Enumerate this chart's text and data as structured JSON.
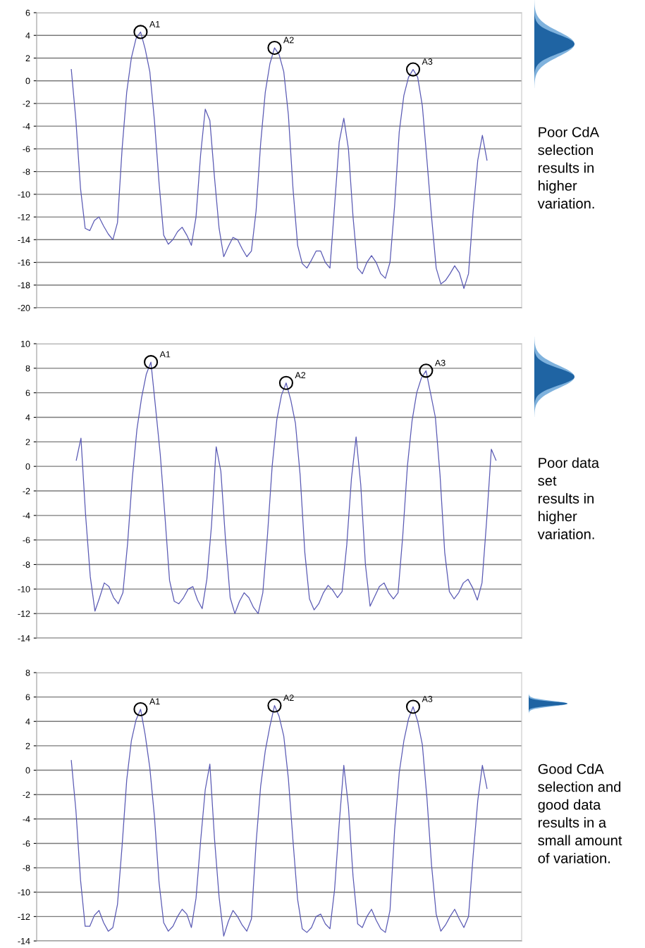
{
  "chart_data": [
    {
      "type": "line",
      "categories": [
        null,
        null,
        null,
        null,
        null,
        null,
        null,
        null,
        null,
        null,
        null,
        null,
        null,
        null,
        null,
        null,
        null,
        null,
        null,
        null,
        null,
        null,
        null,
        null,
        null,
        null,
        null,
        null,
        null,
        null,
        null,
        null,
        null,
        null,
        null,
        null,
        null,
        null,
        null,
        null,
        null,
        null,
        null,
        null,
        null,
        null,
        null,
        null,
        null,
        null,
        null,
        null,
        null,
        null,
        null,
        null,
        null,
        null,
        null,
        null,
        null,
        null,
        null,
        null,
        null,
        null,
        null,
        null,
        null,
        null,
        null,
        null,
        null,
        null,
        null,
        null,
        null,
        null,
        null,
        null,
        null,
        null,
        null,
        null,
        null,
        null,
        null,
        null,
        null,
        null,
        null,
        null,
        null,
        null,
        null,
        null,
        null,
        null,
        null,
        null,
        null,
        null,
        null,
        null,
        null
      ],
      "series": [
        {
          "color": "#5a5ab4",
          "values": [
            null,
            null,
            null,
            null,
            null,
            null,
            null,
            1,
            -3.5,
            -9.5,
            -13,
            -13.2,
            -12.3,
            -12,
            -12.8,
            -13.5,
            -14,
            -12.5,
            -6,
            -1,
            2,
            3.7,
            4.3,
            2.8,
            0.8,
            -3.5,
            -9,
            -13.6,
            -14.4,
            -14,
            -13.3,
            -12.9,
            -13.6,
            -14.5,
            -12,
            -6.5,
            -2.5,
            -3.5,
            -8.5,
            -13,
            -15.5,
            -14.6,
            -13.8,
            -14,
            -14.8,
            -15.5,
            -15,
            -11.5,
            -5.5,
            -1,
            1.5,
            2.9,
            2.3,
            0.8,
            -3,
            -9.5,
            -14.5,
            -16.1,
            -16.5,
            -15.8,
            -15,
            -15,
            -16,
            -16.5,
            -11,
            -5.4,
            -3.3,
            -6,
            -12,
            -16.5,
            -17,
            -16,
            -15.4,
            -16,
            -17,
            -17.4,
            -16,
            -11,
            -4.5,
            -1.3,
            0.3,
            1,
            0.3,
            -2.2,
            -7,
            -12,
            -16.5,
            -17.9,
            -17.6,
            -17,
            -16.3,
            -16.9,
            -18.3,
            -17,
            -11.5,
            -7,
            -4.8,
            -7,
            null,
            null,
            null,
            null,
            null,
            null,
            null
          ]
        },
        {
          "type": "scatter",
          "marker": "circle",
          "color": "#000000",
          "values": [
            null,
            null,
            null,
            null,
            null,
            null,
            null,
            null,
            null,
            null,
            null,
            null,
            null,
            null,
            null,
            null,
            null,
            null,
            null,
            null,
            null,
            null,
            4.3,
            null,
            null,
            null,
            null,
            null,
            null,
            null,
            null,
            null,
            null,
            null,
            null,
            null,
            null,
            null,
            null,
            null,
            null,
            null,
            null,
            null,
            null,
            null,
            null,
            null,
            null,
            null,
            null,
            2.9,
            null,
            null,
            null,
            null,
            null,
            null,
            null,
            null,
            null,
            null,
            null,
            null,
            null,
            null,
            null,
            null,
            null,
            null,
            null,
            null,
            null,
            null,
            null,
            null,
            null,
            null,
            null,
            null,
            null,
            1,
            null,
            null,
            null,
            null,
            null,
            null,
            null,
            null,
            null,
            null,
            null,
            null,
            null,
            null,
            null,
            null,
            null,
            null,
            null,
            null,
            null,
            null,
            null
          ],
          "value_labels": [
            null,
            null,
            null,
            null,
            null,
            null,
            null,
            null,
            null,
            null,
            null,
            null,
            null,
            null,
            null,
            null,
            null,
            null,
            null,
            null,
            null,
            null,
            "A1",
            null,
            null,
            null,
            null,
            null,
            null,
            null,
            null,
            null,
            null,
            null,
            null,
            null,
            null,
            null,
            null,
            null,
            null,
            null,
            null,
            null,
            null,
            null,
            null,
            null,
            null,
            null,
            null,
            "A2",
            null,
            null,
            null,
            null,
            null,
            null,
            null,
            null,
            null,
            null,
            null,
            null,
            null,
            null,
            null,
            null,
            null,
            null,
            null,
            null,
            null,
            null,
            null,
            null,
            null,
            null,
            null,
            null,
            null,
            "A3",
            null,
            null,
            null,
            null,
            null,
            null,
            null,
            null,
            null,
            null,
            null,
            null,
            null,
            null,
            null,
            null,
            null,
            null,
            null,
            null,
            null,
            null,
            null
          ]
        }
      ],
      "ylim": [
        -20,
        6
      ],
      "yticks": [
        -20,
        -18,
        -16,
        -14,
        -12,
        -10,
        -8,
        -6,
        -4,
        -2,
        0,
        2,
        4,
        6
      ],
      "grid": "y",
      "annotations": [
        "Poor CdA\nselection\nresults in\nhigher\nvariation."
      ]
    },
    {
      "type": "line",
      "categories": [
        null,
        null,
        null,
        null,
        null,
        null,
        null,
        null,
        null,
        null,
        null,
        null,
        null,
        null,
        null,
        null,
        null,
        null,
        null,
        null,
        null,
        null,
        null,
        null,
        null,
        null,
        null,
        null,
        null,
        null,
        null,
        null,
        null,
        null,
        null,
        null,
        null,
        null,
        null,
        null,
        null,
        null,
        null,
        null,
        null,
        null,
        null,
        null,
        null,
        null,
        null,
        null,
        null,
        null,
        null,
        null,
        null,
        null,
        null,
        null,
        null,
        null,
        null,
        null,
        null,
        null,
        null,
        null,
        null,
        null,
        null,
        null,
        null,
        null,
        null,
        null,
        null,
        null,
        null,
        null,
        null,
        null,
        null,
        null,
        null,
        null,
        null,
        null,
        null,
        null,
        null,
        null,
        null,
        null,
        null,
        null,
        null,
        null,
        null,
        null,
        null,
        null,
        null,
        null
      ],
      "series": [
        {
          "color": "#5a5ab4",
          "values": [
            null,
            null,
            null,
            null,
            null,
            null,
            null,
            null,
            0.5,
            2.3,
            -4,
            -9,
            -11.8,
            -10.7,
            -9.5,
            -9.8,
            -10.7,
            -11.2,
            -10.3,
            -6.3,
            -1,
            3,
            5.6,
            7.5,
            8.5,
            4.8,
            1,
            -4,
            -9.3,
            -11,
            -11.2,
            -10.7,
            -10,
            -9.8,
            -10.9,
            -11.6,
            -9.2,
            -4.8,
            1.6,
            -0.4,
            -6,
            -10.7,
            -12,
            -11,
            -10.3,
            -10.7,
            -11.5,
            -12,
            -10.3,
            -5.6,
            0,
            3.8,
            5.8,
            6.8,
            5.4,
            3.5,
            -0.7,
            -7,
            -10.8,
            -11.7,
            -11.2,
            -10.3,
            -9.7,
            -10.1,
            -10.7,
            -10.2,
            -6.4,
            -1,
            2.4,
            -1.5,
            -8,
            -11.4,
            -10.6,
            -9.8,
            -9.5,
            -10.3,
            -10.8,
            -10.3,
            -5.7,
            0,
            3.7,
            6,
            7.2,
            7.8,
            5.9,
            4,
            -0.7,
            -7,
            -10.2,
            -10.8,
            -10.3,
            -9.5,
            -9.2,
            -9.9,
            -10.9,
            -9.5,
            -4.4,
            1.4,
            0.5,
            null,
            null,
            null,
            null,
            null
          ]
        },
        {
          "type": "scatter",
          "marker": "circle",
          "color": "#000000",
          "values": [
            null,
            null,
            null,
            null,
            null,
            null,
            null,
            null,
            null,
            null,
            null,
            null,
            null,
            null,
            null,
            null,
            null,
            null,
            null,
            null,
            null,
            null,
            null,
            null,
            8.5,
            null,
            null,
            null,
            null,
            null,
            null,
            null,
            null,
            null,
            null,
            null,
            null,
            null,
            null,
            null,
            null,
            null,
            null,
            null,
            null,
            null,
            null,
            null,
            null,
            null,
            null,
            null,
            null,
            6.8,
            null,
            null,
            null,
            null,
            null,
            null,
            null,
            null,
            null,
            null,
            null,
            null,
            null,
            null,
            null,
            null,
            null,
            null,
            null,
            null,
            null,
            null,
            null,
            null,
            null,
            null,
            null,
            null,
            null,
            7.8,
            null,
            null,
            null,
            null,
            null,
            null,
            null,
            null,
            null,
            null,
            null,
            null,
            null,
            null,
            null,
            null,
            null,
            null,
            null,
            null
          ],
          "value_labels": [
            null,
            null,
            null,
            null,
            null,
            null,
            null,
            null,
            null,
            null,
            null,
            null,
            null,
            null,
            null,
            null,
            null,
            null,
            null,
            null,
            null,
            null,
            null,
            null,
            "A1",
            null,
            null,
            null,
            null,
            null,
            null,
            null,
            null,
            null,
            null,
            null,
            null,
            null,
            null,
            null,
            null,
            null,
            null,
            null,
            null,
            null,
            null,
            null,
            null,
            null,
            null,
            null,
            null,
            "A2",
            null,
            null,
            null,
            null,
            null,
            null,
            null,
            null,
            null,
            null,
            null,
            null,
            null,
            null,
            null,
            null,
            null,
            null,
            null,
            null,
            null,
            null,
            null,
            null,
            null,
            null,
            null,
            null,
            null,
            "A3",
            null,
            null,
            null,
            null,
            null,
            null,
            null,
            null,
            null,
            null,
            null,
            null,
            null,
            null,
            null,
            null,
            null,
            null,
            null,
            null
          ]
        }
      ],
      "ylim": [
        -14,
        10
      ],
      "yticks": [
        -14,
        -12,
        -10,
        -8,
        -6,
        -4,
        -2,
        0,
        2,
        4,
        6,
        8,
        10
      ],
      "grid": "y",
      "annotations": [
        "Poor data\nset\nresults in\nhigher\nvariation."
      ]
    },
    {
      "type": "line",
      "categories": [
        null,
        null,
        null,
        null,
        null,
        null,
        null,
        null,
        null,
        null,
        null,
        null,
        null,
        null,
        null,
        null,
        null,
        null,
        null,
        null,
        null,
        null,
        null,
        null,
        null,
        null,
        null,
        null,
        null,
        null,
        null,
        null,
        null,
        null,
        null,
        null,
        null,
        null,
        null,
        null,
        null,
        null,
        null,
        null,
        null,
        null,
        null,
        null,
        null,
        null,
        null,
        null,
        null,
        null,
        null,
        null,
        null,
        null,
        null,
        null,
        null,
        null,
        null,
        null,
        null,
        null,
        null,
        null,
        null,
        null,
        null,
        null,
        null,
        null,
        null,
        null,
        null,
        null,
        null,
        null,
        null,
        null,
        null,
        null,
        null,
        null,
        null,
        null,
        null,
        null,
        null,
        null,
        null,
        null,
        null,
        null,
        null,
        null,
        null,
        null,
        null,
        null,
        null,
        null,
        null
      ],
      "series": [
        {
          "color": "#5a5ab4",
          "values": [
            null,
            null,
            null,
            null,
            null,
            null,
            null,
            0.8,
            -3.3,
            -9,
            -12.8,
            -12.8,
            -11.9,
            -11.5,
            -12.5,
            -13.2,
            -12.9,
            -11,
            -6.2,
            -0.8,
            2.4,
            4.1,
            5,
            2.9,
            0.2,
            -3.8,
            -9.2,
            -12.5,
            -13.2,
            -12.8,
            -12,
            -11.4,
            -11.8,
            -12.9,
            -10.5,
            -5.8,
            -1.6,
            0.5,
            -5.6,
            -10.4,
            -13.6,
            -12.4,
            -11.5,
            -12,
            -12.7,
            -13.2,
            -12.2,
            -6,
            -1.3,
            1.6,
            3.6,
            5.3,
            4.4,
            2.8,
            -0.7,
            -5.8,
            -10.6,
            -13,
            -13.3,
            -12.9,
            -12,
            -11.8,
            -12.6,
            -13,
            -9.8,
            -4.4,
            0.4,
            -3,
            -8.7,
            -12.6,
            -12.9,
            -12,
            -11.4,
            -12.3,
            -13,
            -13.3,
            -11.5,
            -4.9,
            -0.2,
            2.4,
            4.2,
            5.2,
            4,
            2.1,
            -2.3,
            -7.8,
            -11.8,
            -13.2,
            -12.7,
            -12,
            -11.4,
            -12.2,
            -12.9,
            -12,
            -7,
            -2.5,
            0.4,
            -1.5,
            null,
            null,
            null,
            null,
            null,
            null,
            null
          ]
        },
        {
          "type": "scatter",
          "marker": "circle",
          "color": "#000000",
          "values": [
            null,
            null,
            null,
            null,
            null,
            null,
            null,
            null,
            null,
            null,
            null,
            null,
            null,
            null,
            null,
            null,
            null,
            null,
            null,
            null,
            null,
            null,
            5,
            null,
            null,
            null,
            null,
            null,
            null,
            null,
            null,
            null,
            null,
            null,
            null,
            null,
            null,
            null,
            null,
            null,
            null,
            null,
            null,
            null,
            null,
            null,
            null,
            null,
            null,
            null,
            null,
            5.3,
            null,
            null,
            null,
            null,
            null,
            null,
            null,
            null,
            null,
            null,
            null,
            null,
            null,
            null,
            null,
            null,
            null,
            null,
            null,
            null,
            null,
            null,
            null,
            null,
            null,
            null,
            null,
            null,
            null,
            5.2,
            null,
            null,
            null,
            null,
            null,
            null,
            null,
            null,
            null,
            null,
            null,
            null,
            null,
            null,
            null,
            null,
            null,
            null,
            null,
            null,
            null,
            null,
            null
          ],
          "value_labels": [
            null,
            null,
            null,
            null,
            null,
            null,
            null,
            null,
            null,
            null,
            null,
            null,
            null,
            null,
            null,
            null,
            null,
            null,
            null,
            null,
            null,
            null,
            "A1",
            null,
            null,
            null,
            null,
            null,
            null,
            null,
            null,
            null,
            null,
            null,
            null,
            null,
            null,
            null,
            null,
            null,
            null,
            null,
            null,
            null,
            null,
            null,
            null,
            null,
            null,
            null,
            null,
            "A2",
            null,
            null,
            null,
            null,
            null,
            null,
            null,
            null,
            null,
            null,
            null,
            null,
            null,
            null,
            null,
            null,
            null,
            null,
            null,
            null,
            null,
            null,
            null,
            null,
            null,
            null,
            null,
            null,
            null,
            "A3",
            null,
            null,
            null,
            null,
            null,
            null,
            null,
            null,
            null,
            null,
            null,
            null,
            null,
            null,
            null,
            null,
            null,
            null,
            null,
            null,
            null,
            null,
            null
          ]
        }
      ],
      "ylim": [
        -14,
        8
      ],
      "yticks": [
        -14,
        -12,
        -10,
        -8,
        -6,
        -4,
        -2,
        0,
        2,
        4,
        6,
        8
      ],
      "grid": "y",
      "annotations": [
        "Good CdA\nselection and\ngood data\nresults in a\nsmall amount\nof variation."
      ]
    }
  ]
}
